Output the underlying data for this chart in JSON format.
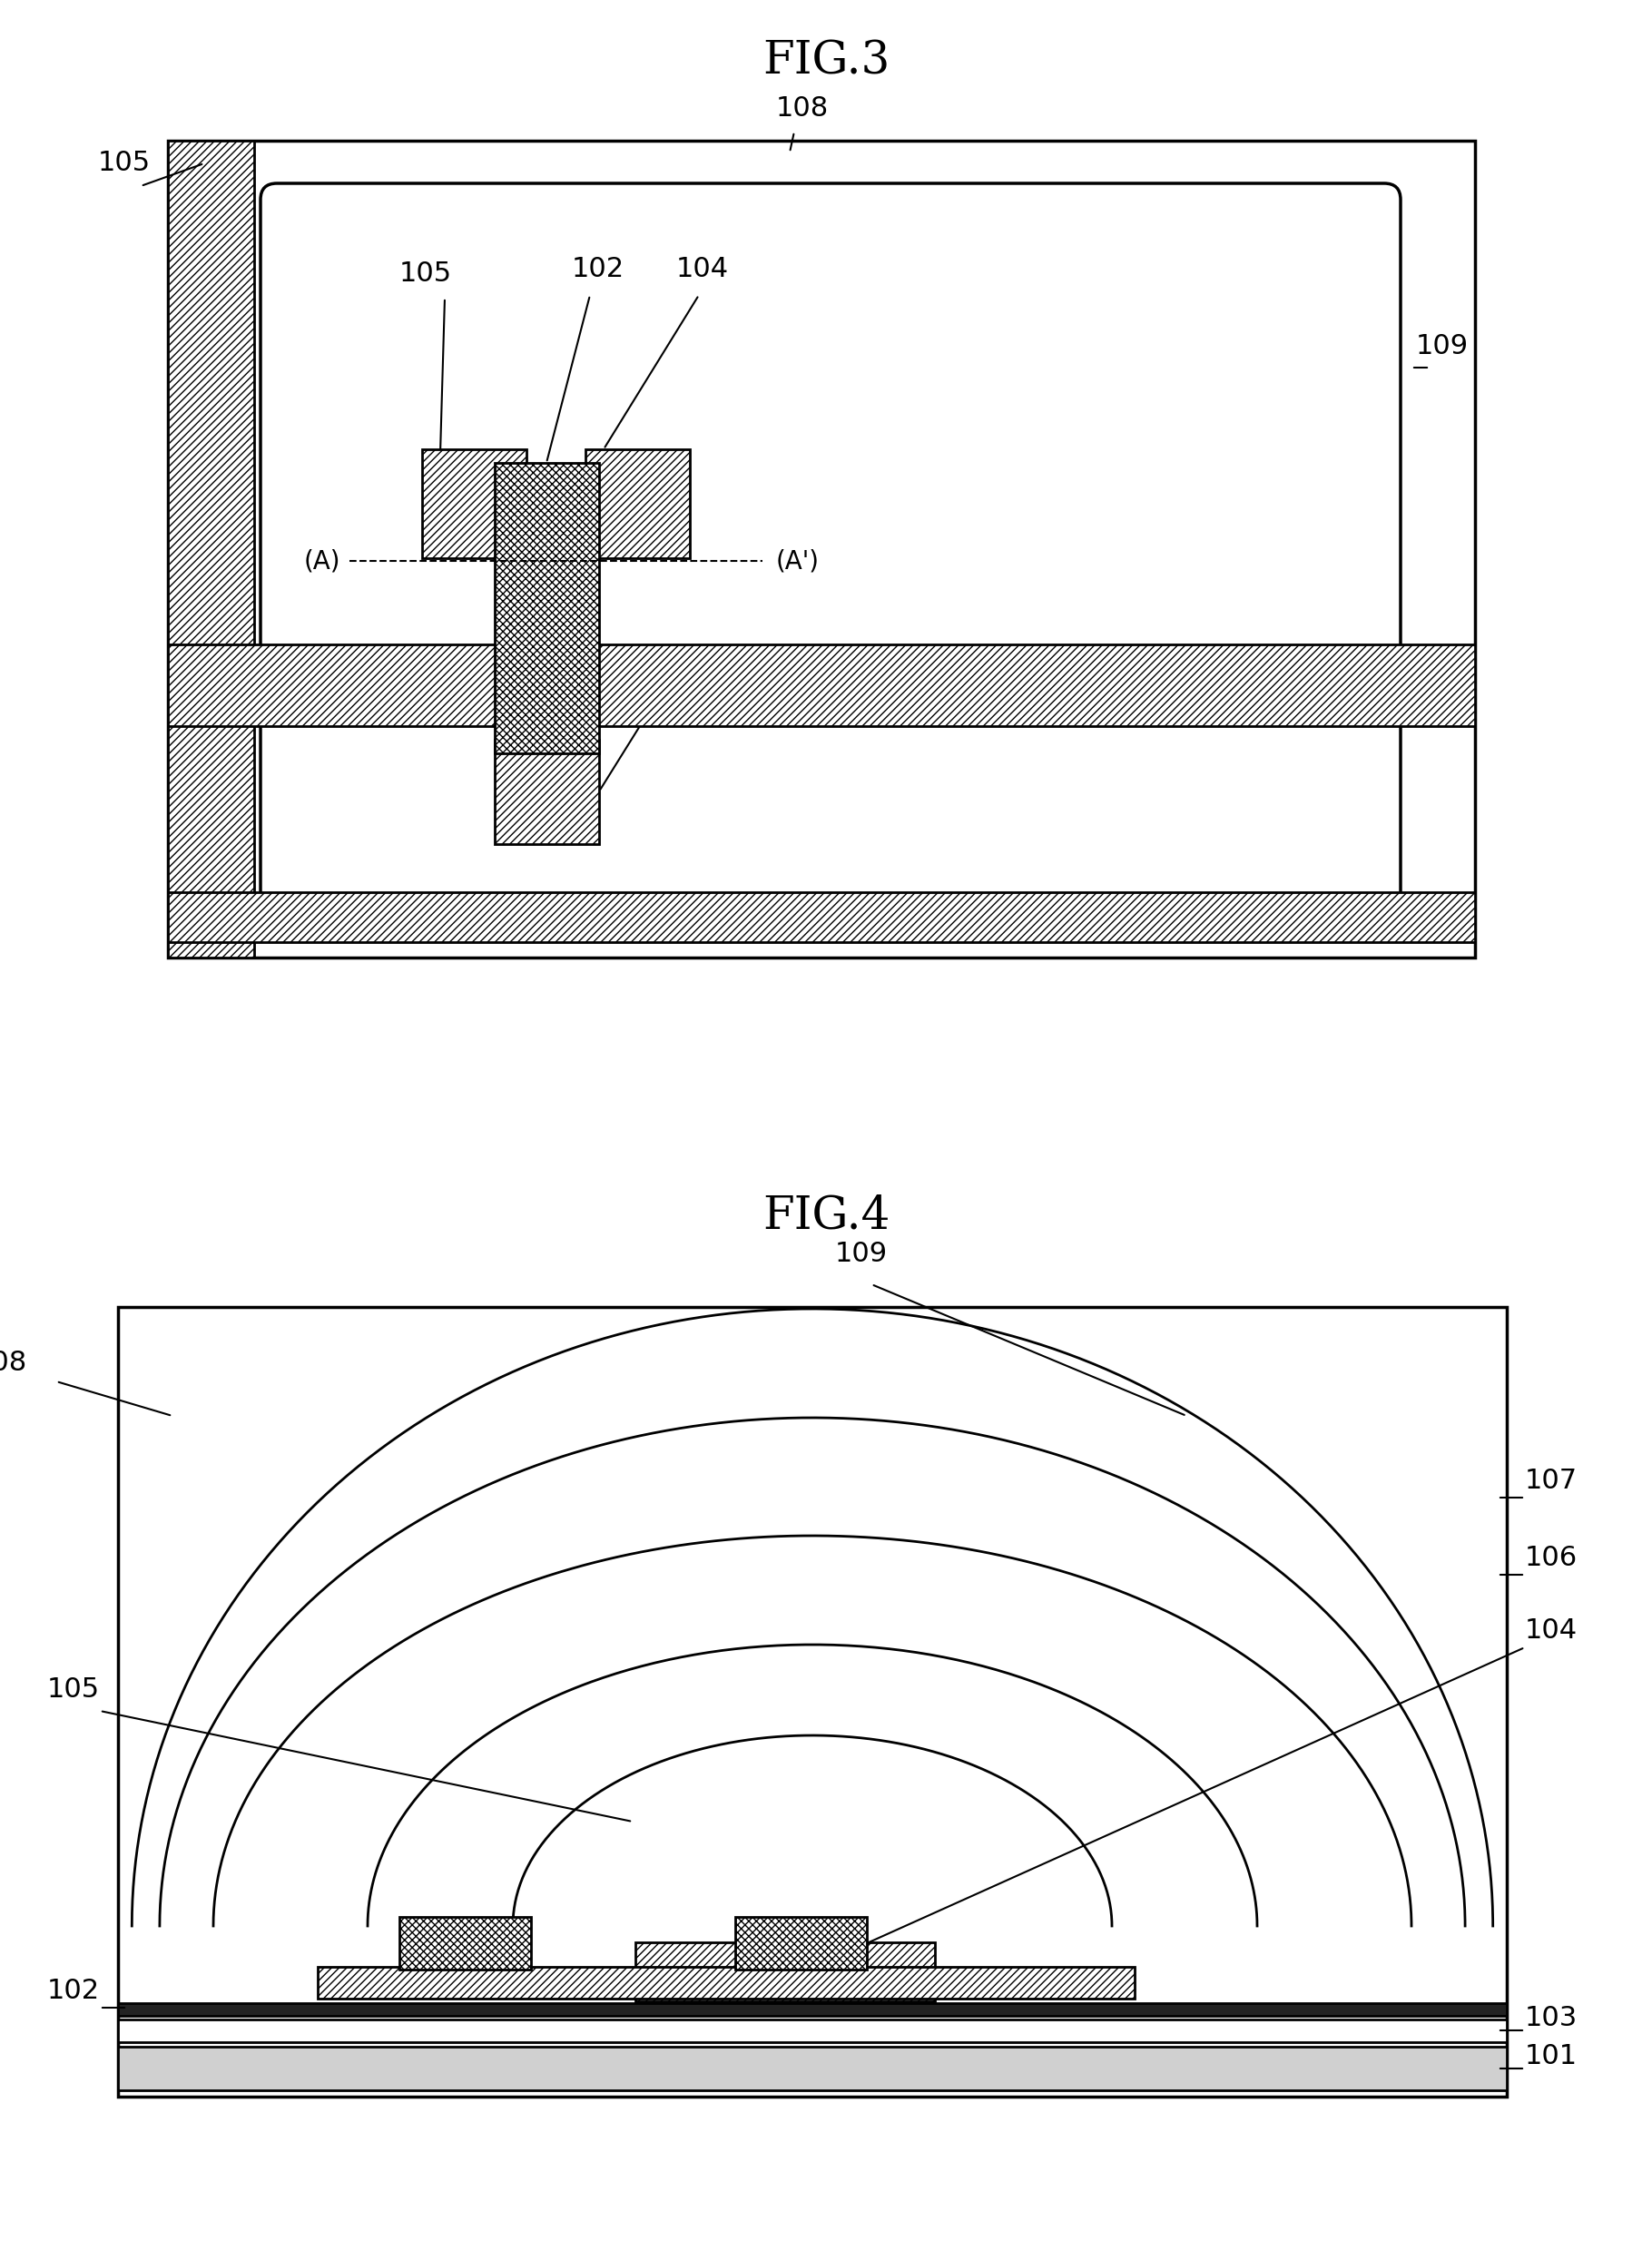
{
  "fig_title1": "FIG.3",
  "fig_title2": "FIG.4",
  "bg_color": "#ffffff",
  "line_color": "#000000",
  "font_size_title": 36,
  "font_size_label": 22,
  "font_size_AB": 20
}
